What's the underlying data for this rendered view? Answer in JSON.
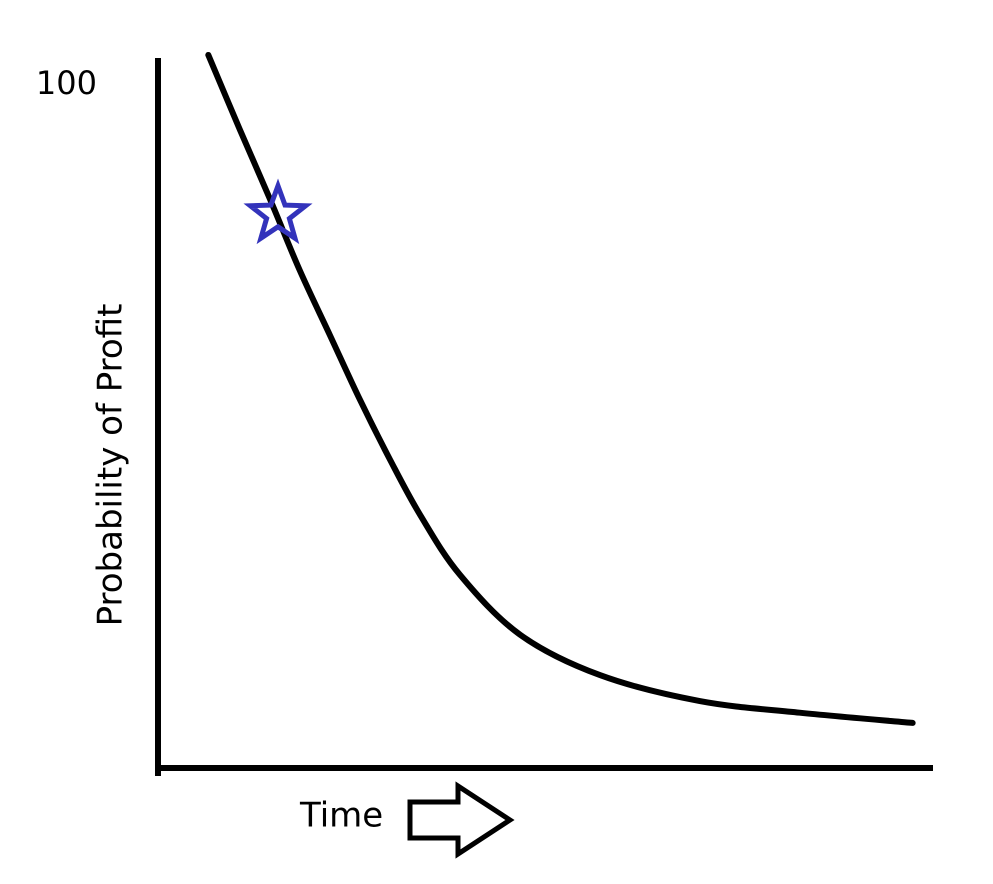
{
  "chart_data": {
    "type": "line",
    "y_label": "Probability of Profit",
    "x_label": "Time",
    "xlim": [
      0,
      100
    ],
    "ylim": [
      0,
      105
    ],
    "yticks": [
      100
    ],
    "grid": false,
    "series": [
      {
        "color": "#000000",
        "x": [
          6.5,
          10.6,
          14.5,
          18.3,
          22.2,
          26.1,
          30.0,
          33.9,
          39.0,
          46.8,
          57.1,
          70.0,
          82.9,
          97.5
        ],
        "values": [
          104.4,
          93.4,
          83.2,
          72.9,
          63.4,
          53.9,
          45.1,
          37.0,
          28.3,
          19.5,
          13.6,
          9.8,
          8.1,
          6.6
        ]
      }
    ],
    "marker": {
      "x": 15.5,
      "y": 81.0,
      "color": "#3333bb"
    }
  }
}
